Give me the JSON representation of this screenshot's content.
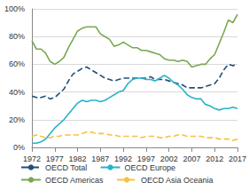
{
  "chart_data": {
    "type": "line",
    "x": [
      1972,
      1973,
      1974,
      1975,
      1976,
      1977,
      1978,
      1979,
      1980,
      1981,
      1982,
      1983,
      1984,
      1985,
      1986,
      1987,
      1988,
      1989,
      1990,
      1991,
      1992,
      1993,
      1994,
      1995,
      1996,
      1997,
      1998,
      1999,
      2000,
      2001,
      2002,
      2003,
      2004,
      2005,
      2006,
      2007,
      2008,
      2009,
      2010,
      2011,
      2012,
      2013,
      2014,
      2015,
      2016,
      2017
    ],
    "series": [
      {
        "name": "OECD Total",
        "color": "#1f4e79",
        "line_style": "dashed",
        "values": [
          37,
          36,
          36,
          37,
          35,
          36,
          39,
          42,
          48,
          53,
          55,
          57,
          58,
          56,
          54,
          52,
          50,
          49,
          48,
          49,
          50,
          50,
          50,
          50,
          50,
          50,
          51,
          49,
          49,
          49,
          48,
          47,
          46,
          45,
          43,
          43,
          43,
          43,
          44,
          45,
          46,
          50,
          56,
          60,
          59,
          60
        ]
      },
      {
        "name": "OECD Europe",
        "color": "#29b2c9",
        "line_style": "solid",
        "values": [
          3,
          3,
          4,
          6,
          10,
          14,
          17,
          20,
          24,
          28,
          32,
          34,
          33,
          34,
          34,
          33,
          34,
          36,
          38,
          40,
          41,
          46,
          49,
          50,
          50,
          49,
          49,
          48,
          50,
          52,
          50,
          47,
          45,
          42,
          38,
          36,
          35,
          35,
          31,
          30,
          28,
          27,
          28,
          28,
          29,
          28
        ]
      },
      {
        "name": "OECD Americas",
        "color": "#78a850",
        "line_style": "solid",
        "values": [
          77,
          71,
          71,
          68,
          62,
          60,
          62,
          65,
          72,
          78,
          84,
          86,
          87,
          87,
          87,
          82,
          80,
          78,
          73,
          74,
          76,
          74,
          72,
          72,
          70,
          70,
          69,
          68,
          67,
          64,
          63,
          63,
          62,
          63,
          62,
          58,
          59,
          60,
          60,
          64,
          67,
          75,
          83,
          92,
          90,
          96
        ]
      },
      {
        "name": "OECD Asia Oceania",
        "color": "#f5c242",
        "line_style": "dashed",
        "values": [
          8,
          9,
          8,
          7,
          7,
          8,
          8,
          9,
          9,
          9,
          9,
          10,
          11,
          11,
          10,
          10,
          10,
          9,
          9,
          8,
          8,
          8,
          8,
          8,
          7,
          8,
          8,
          8,
          7,
          7,
          8,
          8,
          9,
          9,
          8,
          8,
          8,
          8,
          7,
          7,
          7,
          6,
          6,
          6,
          5,
          6
        ]
      }
    ],
    "xlim": [
      1972,
      2017
    ],
    "xticks": [
      1972,
      1977,
      1982,
      1987,
      1992,
      1997,
      2002,
      2007,
      2012,
      2017
    ],
    "ylim": [
      0,
      100
    ],
    "yticks": [
      {
        "value": 0,
        "label": "0%"
      },
      {
        "value": 20,
        "label": "20%"
      },
      {
        "value": 40,
        "label": "40%"
      },
      {
        "value": 60,
        "label": "60%"
      },
      {
        "value": 80,
        "label": "80%"
      },
      {
        "value": 100,
        "label": "100%"
      }
    ],
    "grid": true,
    "legend": "bottom"
  }
}
